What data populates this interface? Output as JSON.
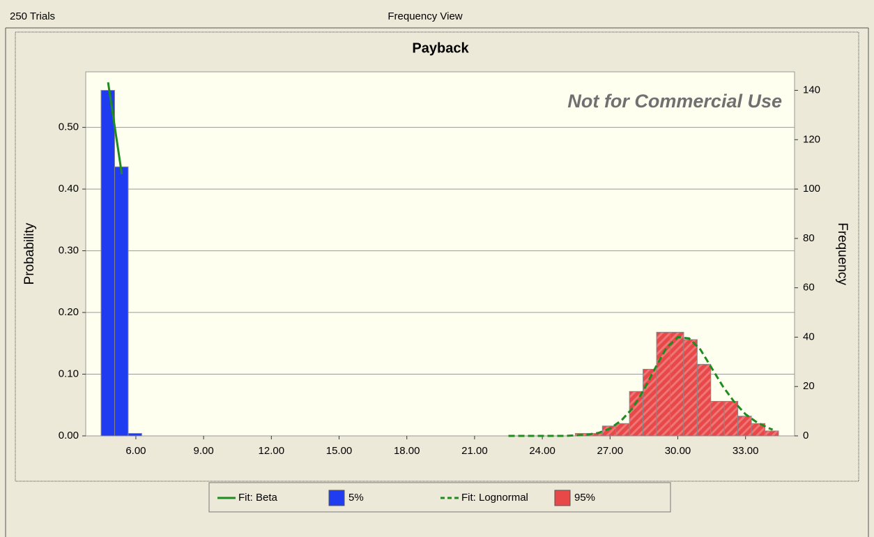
{
  "header": {
    "left": "250 Trials",
    "center": "Frequency View"
  },
  "chart_data": {
    "type": "histogram",
    "title": "Payback",
    "watermark": "Not for Commercial Use",
    "ylabel": "Probability",
    "y2label": "Frequency",
    "xlim": [
      3.78,
      35.17
    ],
    "ylim": [
      0,
      0.59
    ],
    "y2lim": [
      0,
      147.5
    ],
    "xticks": [
      {
        "value": 6,
        "label": "6.00"
      },
      {
        "value": 9,
        "label": "9.00"
      },
      {
        "value": 12,
        "label": "12.00"
      },
      {
        "value": 15,
        "label": "15.00"
      },
      {
        "value": 18,
        "label": "18.00"
      },
      {
        "value": 21,
        "label": "21.00"
      },
      {
        "value": 24,
        "label": "24.00"
      },
      {
        "value": 27,
        "label": "27.00"
      },
      {
        "value": 30,
        "label": "30.00"
      },
      {
        "value": 33,
        "label": "33.00"
      }
    ],
    "yticks": [
      {
        "value": 0,
        "label": "0.00"
      },
      {
        "value": 0.1,
        "label": "0.10"
      },
      {
        "value": 0.2,
        "label": "0.20"
      },
      {
        "value": 0.3,
        "label": "0.30"
      },
      {
        "value": 0.4,
        "label": "0.40"
      },
      {
        "value": 0.5,
        "label": "0.50"
      }
    ],
    "y2ticks": [
      0,
      20,
      40,
      60,
      80,
      100,
      120,
      140
    ],
    "grid": true,
    "series": [
      {
        "name": "Fit: Beta",
        "type": "line",
        "dashed": false,
        "color": "#1e8c1e",
        "x": [
          4.77,
          5.38
        ],
        "values": [
          0.573,
          0.424
        ]
      },
      {
        "name": "5%",
        "type": "bar",
        "hatched": false,
        "color": "#1f3cf0",
        "bins": [
          4.46,
          5.06,
          5.66,
          6.26
        ],
        "values": [
          0.56,
          0.436,
          0.004
        ]
      },
      {
        "name": "Fit: Lognormal",
        "type": "line",
        "dashed": true,
        "color": "#1e8c1e",
        "x": [
          22.5,
          24,
          25,
          26,
          26.5,
          27,
          27.5,
          28,
          28.5,
          29,
          29.5,
          30,
          30.5,
          31,
          31.5,
          32,
          32.5,
          33,
          33.5,
          34,
          34.2
        ],
        "values": [
          0,
          0,
          0,
          0.002,
          0.005,
          0.012,
          0.025,
          0.045,
          0.075,
          0.11,
          0.143,
          0.16,
          0.158,
          0.14,
          0.11,
          0.08,
          0.055,
          0.035,
          0.022,
          0.013,
          0.01
        ]
      },
      {
        "name": "95%",
        "type": "bar",
        "hatched": true,
        "color": "#e84848",
        "bins": [
          25.46,
          26.06,
          26.66,
          27.26,
          27.86,
          28.46,
          29.06,
          29.66,
          30.26,
          30.86,
          31.46,
          32.06,
          32.66,
          33.26,
          33.86,
          34.46
        ],
        "values": [
          0.004,
          0.004,
          0.016,
          0.02,
          0.072,
          0.108,
          0.168,
          0.168,
          0.156,
          0.116,
          0.056,
          0.056,
          0.032,
          0.02,
          0.008
        ]
      }
    ]
  }
}
